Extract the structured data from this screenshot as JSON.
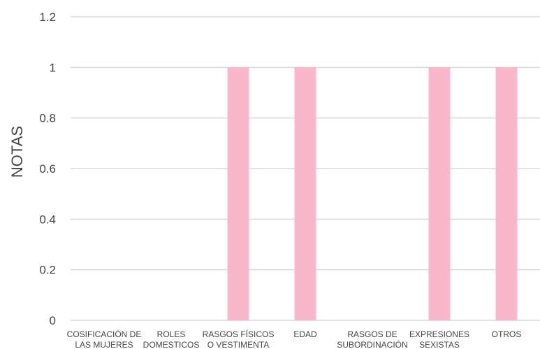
{
  "chart_data": {
    "type": "bar",
    "title": "",
    "xlabel": "",
    "ylabel": "NOTAS",
    "ylim": [
      0,
      1.2
    ],
    "yticks": [
      "0",
      "0.2",
      "0.4",
      "0.6",
      "0.8",
      "1",
      "1.2"
    ],
    "categories": [
      [
        "COSIFICACIÓN DE",
        "LAS MUJERES"
      ],
      [
        "ROLES",
        "DOMESTICOS"
      ],
      [
        "RASGOS FÍSICOS",
        "O VESTIMENTA"
      ],
      [
        "EDAD"
      ],
      [
        "RASGOS DE",
        "SUBORDINACIÓN"
      ],
      [
        "EXPRESIONES",
        "SEXISTAS"
      ],
      [
        "OTROS"
      ]
    ],
    "values": [
      0,
      0,
      1,
      1,
      0,
      1,
      1
    ],
    "grid": true,
    "legend": "none",
    "colors": {
      "bar": "#f8b7cb",
      "grid": "#d9d9d9",
      "text": "#444444"
    }
  }
}
